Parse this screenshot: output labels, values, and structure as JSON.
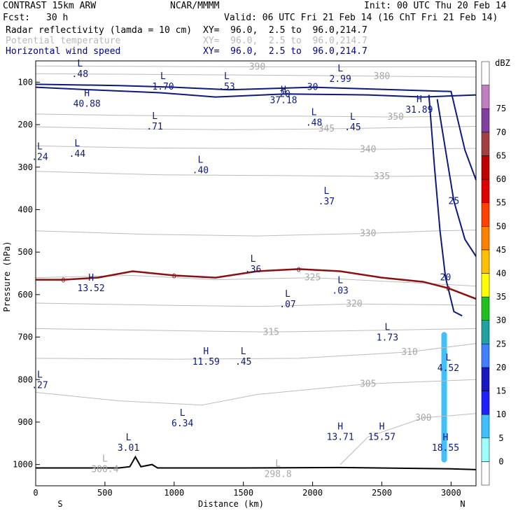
{
  "header": {
    "model": "CONTRAST 15km ARW",
    "center": "NCAR/MMMM",
    "init": "Init: 00 UTC Thu 20 Feb 14",
    "fcst_label": "Fcst:",
    "fcst_value": "30 h",
    "valid": "Valid: 06 UTC Fri 21 Feb 14 (16 ChT Fri 21 Feb 14)"
  },
  "fields": [
    {
      "name": "Radar reflectivity (lamda = 10 cm)",
      "xy": "XY=  96.0,  2.5 to  96.0,214.7",
      "color": "#000000"
    },
    {
      "name": "Potential temperature",
      "xy": "XY=  96.0,  2.5 to  96.0,214.7",
      "color": "#b8b8b8"
    },
    {
      "name": "Horizontal wind speed",
      "xy": "XY=  96.0,  2.5 to  96.0,214.7",
      "color": "#000080"
    }
  ],
  "colors": {
    "theta": "#bcbcbc",
    "wind": "#0c1a7a",
    "freezing": "#8b1010",
    "terrain": "#000000",
    "refl_echo": "#80f0ff"
  },
  "chart_data": {
    "type": "cross-section",
    "xlabel": "Distance (km)",
    "ylabel": "Pressure (hPa)",
    "xlim": [
      0,
      3180
    ],
    "ylim": [
      1050,
      50
    ],
    "x_ticks": [
      0,
      500,
      1000,
      1500,
      2000,
      2500,
      3000
    ],
    "y_ticks": [
      100,
      200,
      300,
      400,
      500,
      600,
      700,
      800,
      900,
      1000
    ],
    "endpoints": {
      "left": "S",
      "right": "N"
    },
    "colorbar": {
      "unit": "dBZ",
      "levels": [
        0,
        5,
        10,
        15,
        20,
        25,
        30,
        35,
        40,
        45,
        50,
        55,
        60,
        65,
        70,
        75
      ],
      "colors": [
        "#ffffff",
        "#a0ffff",
        "#40c0ff",
        "#2020ff",
        "#1818c0",
        "#4080ff",
        "#20a0a0",
        "#20c020",
        "#ffff00",
        "#ffc000",
        "#ff8000",
        "#ff4000",
        "#e00000",
        "#c00000",
        "#a04040",
        "#8040a0",
        "#c080c0",
        "#ffffff"
      ]
    },
    "theta_contours": [
      {
        "label": "390",
        "points": [
          [
            0,
            62
          ],
          [
            800,
            63
          ],
          [
            1600,
            64
          ],
          [
            2400,
            64
          ],
          [
            3180,
            64
          ]
        ]
      },
      {
        "label": "380",
        "points": [
          [
            0,
            80
          ],
          [
            900,
            82
          ],
          [
            1800,
            84
          ],
          [
            2500,
            86
          ],
          [
            3180,
            88
          ]
        ]
      },
      {
        "label": "350",
        "points": [
          [
            0,
            175
          ],
          [
            600,
            178
          ],
          [
            1200,
            180
          ],
          [
            1900,
            180
          ],
          [
            2600,
            182
          ],
          [
            3180,
            180
          ]
        ]
      },
      {
        "label": "345",
        "points": [
          [
            0,
            205
          ],
          [
            700,
            210
          ],
          [
            1400,
            212
          ],
          [
            2100,
            210
          ],
          [
            2800,
            206
          ],
          [
            3180,
            204
          ]
        ]
      },
      {
        "label": "340",
        "points": [
          [
            0,
            250
          ],
          [
            800,
            255
          ],
          [
            1600,
            256
          ],
          [
            2400,
            258
          ],
          [
            3180,
            256
          ]
        ]
      },
      {
        "label": "335",
        "points": [
          [
            0,
            310
          ],
          [
            900,
            318
          ],
          [
            1800,
            320
          ],
          [
            2500,
            322
          ],
          [
            3180,
            320
          ]
        ]
      },
      {
        "label": "330",
        "points": [
          [
            0,
            450
          ],
          [
            800,
            458
          ],
          [
            1600,
            462
          ],
          [
            2400,
            456
          ],
          [
            2900,
            450
          ],
          [
            3180,
            448
          ]
        ]
      },
      {
        "label": "325",
        "points": [
          [
            0,
            560
          ],
          [
            700,
            555
          ],
          [
            1300,
            565
          ],
          [
            2000,
            560
          ],
          [
            2600,
            570
          ],
          [
            3180,
            580
          ]
        ]
      },
      {
        "label": "320",
        "points": [
          [
            0,
            620
          ],
          [
            900,
            625
          ],
          [
            1600,
            628
          ],
          [
            2300,
            622
          ],
          [
            3180,
            625
          ]
        ]
      },
      {
        "label": "315",
        "points": [
          [
            0,
            680
          ],
          [
            1000,
            685
          ],
          [
            1700,
            688
          ],
          [
            2500,
            684
          ],
          [
            3180,
            680
          ]
        ]
      },
      {
        "label": "310",
        "points": [
          [
            0,
            750
          ],
          [
            1000,
            752
          ],
          [
            1900,
            750
          ],
          [
            2700,
            735
          ],
          [
            3180,
            715
          ]
        ]
      },
      {
        "label": "305",
        "points": [
          [
            0,
            830
          ],
          [
            600,
            850
          ],
          [
            1200,
            860
          ],
          [
            1600,
            835
          ],
          [
            2400,
            810
          ],
          [
            3180,
            800
          ]
        ]
      },
      {
        "label": "300",
        "points": [
          [
            2200,
            1000
          ],
          [
            2400,
            935
          ],
          [
            2800,
            890
          ],
          [
            3180,
            880
          ]
        ]
      }
    ],
    "wind_contours": [
      {
        "label": "20",
        "points": [
          [
            0,
            112
          ],
          [
            400,
            118
          ],
          [
            900,
            125
          ],
          [
            1300,
            135
          ],
          [
            1800,
            128
          ],
          [
            2400,
            130
          ],
          [
            2800,
            135
          ],
          [
            3180,
            130
          ]
        ]
      },
      {
        "label": "30",
        "points": [
          [
            0,
            105
          ],
          [
            600,
            108
          ],
          [
            1000,
            112
          ],
          [
            1400,
            118
          ],
          [
            2000,
            112
          ],
          [
            2600,
            118
          ],
          [
            3000,
            122
          ],
          [
            3100,
            260
          ],
          [
            3180,
            330
          ]
        ]
      },
      {
        "label": "25",
        "points": [
          [
            2900,
            140
          ],
          [
            2960,
            260
          ],
          [
            3020,
            380
          ],
          [
            3100,
            470
          ],
          [
            3180,
            510
          ]
        ]
      },
      {
        "label": "20",
        "points": [
          [
            2840,
            130
          ],
          [
            2880,
            300
          ],
          [
            2920,
            450
          ],
          [
            2960,
            560
          ],
          [
            3020,
            640
          ],
          [
            3080,
            650
          ]
        ]
      }
    ],
    "freezing_level": {
      "label": "0",
      "points": [
        [
          0,
          565
        ],
        [
          200,
          565
        ],
        [
          450,
          560
        ],
        [
          700,
          545
        ],
        [
          1000,
          555
        ],
        [
          1300,
          560
        ],
        [
          1600,
          545
        ],
        [
          1900,
          540
        ],
        [
          2200,
          545
        ],
        [
          2500,
          560
        ],
        [
          2800,
          570
        ],
        [
          2980,
          585
        ],
        [
          3180,
          610
        ]
      ]
    },
    "terrain": {
      "points": [
        [
          0,
          1008
        ],
        [
          600,
          1008
        ],
        [
          680,
          1005
        ],
        [
          720,
          982
        ],
        [
          760,
          1005
        ],
        [
          840,
          1000
        ],
        [
          880,
          1008
        ],
        [
          1500,
          1008
        ],
        [
          2200,
          1007
        ],
        [
          3000,
          1010
        ],
        [
          3180,
          1012
        ]
      ]
    },
    "reflectivity_echo": {
      "x_center": 2950,
      "p_top": 688,
      "p_bottom": 995,
      "dbz": 5
    },
    "extrema": [
      {
        "type": "L",
        "value": ".48",
        "x": 320,
        "p": 68
      },
      {
        "type": "L",
        "value": "1.70",
        "x": 920,
        "p": 98
      },
      {
        "type": "L",
        "value": ".53",
        "x": 1380,
        "p": 98
      },
      {
        "type": "L",
        "value": "2.99",
        "x": 2200,
        "p": 80
      },
      {
        "type": "H",
        "value": "40.88",
        "x": 370,
        "p": 138
      },
      {
        "type": "H",
        "value": "37.18",
        "x": 1790,
        "p": 130
      },
      {
        "type": "H",
        "value": "31.89",
        "x": 2770,
        "p": 152
      },
      {
        "type": "L",
        "value": ".71",
        "x": 860,
        "p": 192
      },
      {
        "type": "L",
        "value": ".48",
        "x": 2010,
        "p": 183
      },
      {
        "type": "L",
        "value": ".45",
        "x": 2290,
        "p": 193
      },
      {
        "type": "L",
        "value": ".44",
        "x": 300,
        "p": 256
      },
      {
        "type": "L",
        "value": ".24",
        "x": 30,
        "p": 263
      },
      {
        "type": "L",
        "value": ".40",
        "x": 1190,
        "p": 295
      },
      {
        "type": "L",
        "value": ".37",
        "x": 2100,
        "p": 368
      },
      {
        "type": "L",
        "value": ".36",
        "x": 1570,
        "p": 528
      },
      {
        "type": "H",
        "value": "13.52",
        "x": 400,
        "p": 572
      },
      {
        "type": "L",
        "value": ".03",
        "x": 2200,
        "p": 578
      },
      {
        "type": "L",
        "value": ".07",
        "x": 1820,
        "p": 610
      },
      {
        "type": "L",
        "value": "1.73",
        "x": 2540,
        "p": 688
      },
      {
        "type": "H",
        "value": "11.59",
        "x": 1230,
        "p": 745
      },
      {
        "type": "L",
        "value": ".45",
        "x": 1500,
        "p": 745
      },
      {
        "type": "L",
        "value": "4.52",
        "x": 2980,
        "p": 760
      },
      {
        "type": "L",
        "value": ".27",
        "x": 30,
        "p": 800
      },
      {
        "type": "L",
        "value": "6.34",
        "x": 1060,
        "p": 890
      },
      {
        "type": "H",
        "value": "13.71",
        "x": 2200,
        "p": 922
      },
      {
        "type": "H",
        "value": "15.57",
        "x": 2500,
        "p": 922
      },
      {
        "type": "H",
        "value": "18.55",
        "x": 2960,
        "p": 948
      },
      {
        "type": "L",
        "value": "3.01",
        "x": 670,
        "p": 948
      }
    ],
    "theta_extrema": [
      {
        "type": "L",
        "value": "300.4",
        "x": 500,
        "p": 998
      },
      {
        "type": "L",
        "value": "298.8",
        "x": 1750,
        "p": 1010
      }
    ]
  }
}
